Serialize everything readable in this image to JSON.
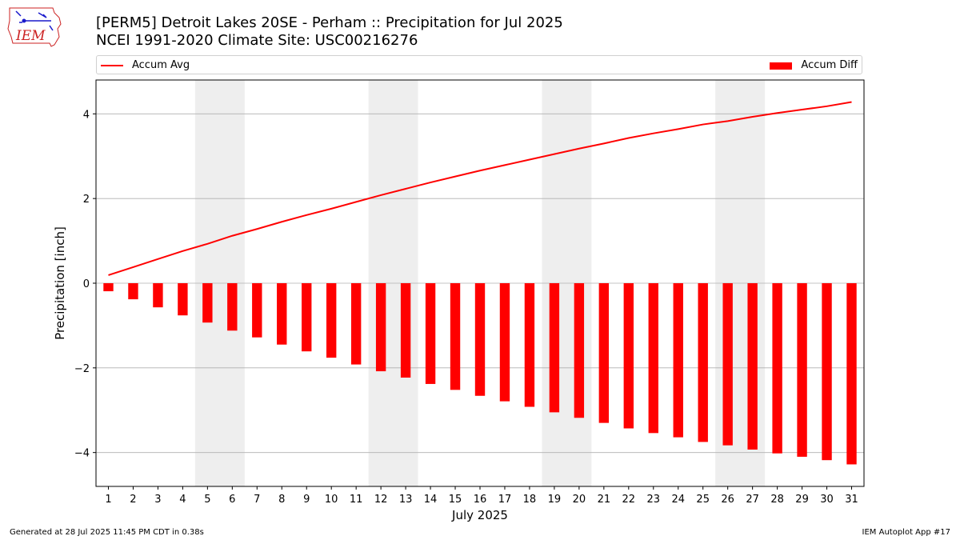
{
  "header": {
    "title_line1": "[PERM5] Detroit Lakes 20SE - Perham :: Precipitation for Jul 2025",
    "title_line2": "NCEI 1991-2020 Climate Site: USC00216276"
  },
  "logo": {
    "text": "IEM"
  },
  "legend": {
    "placement": "top",
    "line_label": "Accum Avg",
    "bar_label": "Accum Diff"
  },
  "footer": {
    "left": "Generated at 28 Jul 2025 11:45 PM CDT in 0.38s",
    "right": "IEM Autoplot App #17"
  },
  "colors": {
    "series": "#ff0000",
    "weekend_band": "#eeeeee",
    "grid": "#b0b0b0",
    "logo_accent": "#cc2222",
    "logo_ink": "#1a1acc"
  },
  "chart_data": {
    "type": "bar",
    "xlabel": "July 2025",
    "ylabel": "Precipitation [inch]",
    "xlim": [
      0.5,
      31.5
    ],
    "ylim": [
      -4.8,
      4.8
    ],
    "yticks": [
      -4,
      -2,
      0,
      2,
      4
    ],
    "ytick_labels": [
      "−4",
      "−2",
      "0",
      "2",
      "4"
    ],
    "grid": "y",
    "categories": [
      1,
      2,
      3,
      4,
      5,
      6,
      7,
      8,
      9,
      10,
      11,
      12,
      13,
      14,
      15,
      16,
      17,
      18,
      19,
      20,
      21,
      22,
      23,
      24,
      25,
      26,
      27,
      28,
      29,
      30,
      31
    ],
    "weekend_bands": [
      [
        4.5,
        6.5
      ],
      [
        11.5,
        13.5
      ],
      [
        18.5,
        20.5
      ],
      [
        25.5,
        27.5
      ]
    ],
    "series": [
      {
        "name": "Accum Diff",
        "kind": "bar",
        "values": [
          -0.19,
          -0.38,
          -0.57,
          -0.76,
          -0.93,
          -1.12,
          -1.28,
          -1.45,
          -1.61,
          -1.76,
          -1.92,
          -2.08,
          -2.23,
          -2.38,
          -2.52,
          -2.66,
          -2.79,
          -2.92,
          -3.05,
          -3.18,
          -3.3,
          -3.43,
          -3.54,
          -3.64,
          -3.75,
          -3.83,
          -3.93,
          -4.02,
          -4.1,
          -4.18,
          -4.28
        ]
      },
      {
        "name": "Accum Avg",
        "kind": "line",
        "values": [
          0.19,
          0.38,
          0.57,
          0.76,
          0.93,
          1.12,
          1.28,
          1.45,
          1.61,
          1.76,
          1.92,
          2.08,
          2.23,
          2.38,
          2.52,
          2.66,
          2.79,
          2.92,
          3.05,
          3.18,
          3.3,
          3.43,
          3.54,
          3.64,
          3.75,
          3.83,
          3.93,
          4.02,
          4.1,
          4.18,
          4.28
        ]
      }
    ]
  }
}
